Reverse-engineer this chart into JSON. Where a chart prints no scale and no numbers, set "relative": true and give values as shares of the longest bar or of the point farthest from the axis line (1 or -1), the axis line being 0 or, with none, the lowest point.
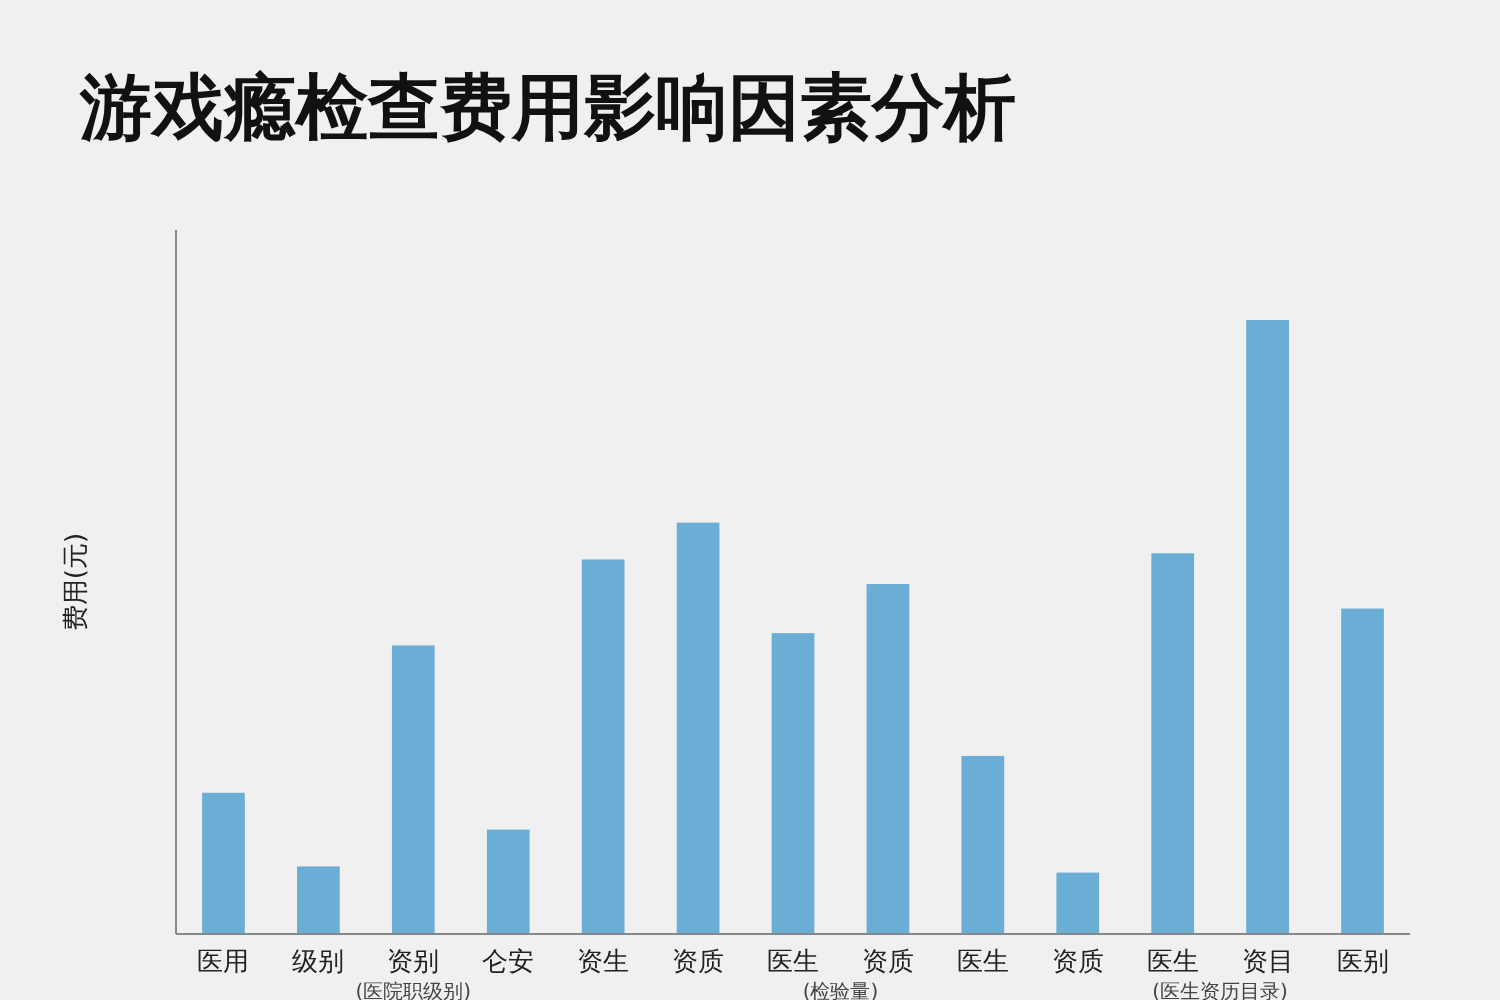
{
  "chart_data": {
    "type": "bar",
    "title": "游戏瘾检查费用影响因素分析",
    "ylabel": "费用(元)",
    "relative": true,
    "categories": [
      "医用",
      "级别",
      "资别",
      "仑安",
      "资生",
      "资质",
      "医生",
      "资质",
      "医生",
      "资质",
      "医生",
      "资目",
      "医别"
    ],
    "values": [
      0.23,
      0.11,
      0.47,
      0.17,
      0.61,
      0.67,
      0.49,
      0.57,
      0.29,
      0.1,
      0.62,
      1,
      0.53
    ],
    "color": "#6aaed6",
    "annotations": [
      "(医院职级别)",
      "(检验量)",
      "(医生资历目录)"
    ]
  }
}
